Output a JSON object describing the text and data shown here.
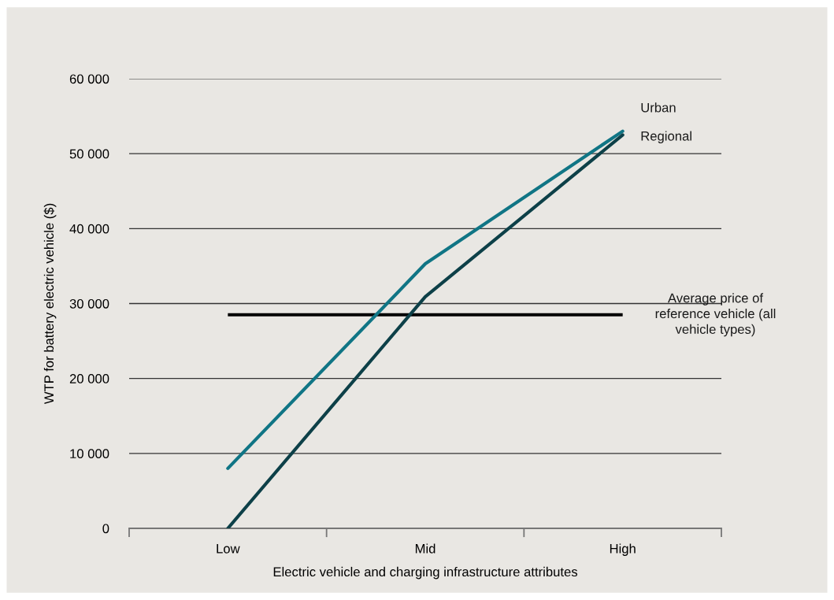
{
  "chart_data": {
    "type": "line",
    "xlabel": "Electric vehicle and charging infrastructure attributes",
    "ylabel": "WTP for battery electric vehicle ($)",
    "categories": [
      "Low",
      "Mid",
      "High"
    ],
    "series": [
      {
        "name": "Urban",
        "color": "#107585",
        "values": [
          8000,
          35300,
          53000
        ]
      },
      {
        "name": "Regional",
        "color": "#0d4048",
        "values": [
          0,
          30900,
          52500
        ]
      }
    ],
    "ylim": [
      0,
      60000
    ],
    "yticks": [
      {
        "value": 0,
        "label": "0"
      },
      {
        "value": 10000,
        "label": "10 000"
      },
      {
        "value": 20000,
        "label": "20 000"
      },
      {
        "value": 30000,
        "label": "30 000"
      },
      {
        "value": 40000,
        "label": "40 000"
      },
      {
        "value": 50000,
        "label": "50 000"
      },
      {
        "value": 60000,
        "label": "60 000"
      }
    ],
    "ref_lines": [
      {
        "axis": "y",
        "value": 28500,
        "label": "Average price of\nreference vehicle (all\nvehicle types)",
        "color": "#000000",
        "line_style": "solid"
      }
    ],
    "grid": "y",
    "legend": false,
    "marker": "none",
    "line_style": "solid"
  }
}
